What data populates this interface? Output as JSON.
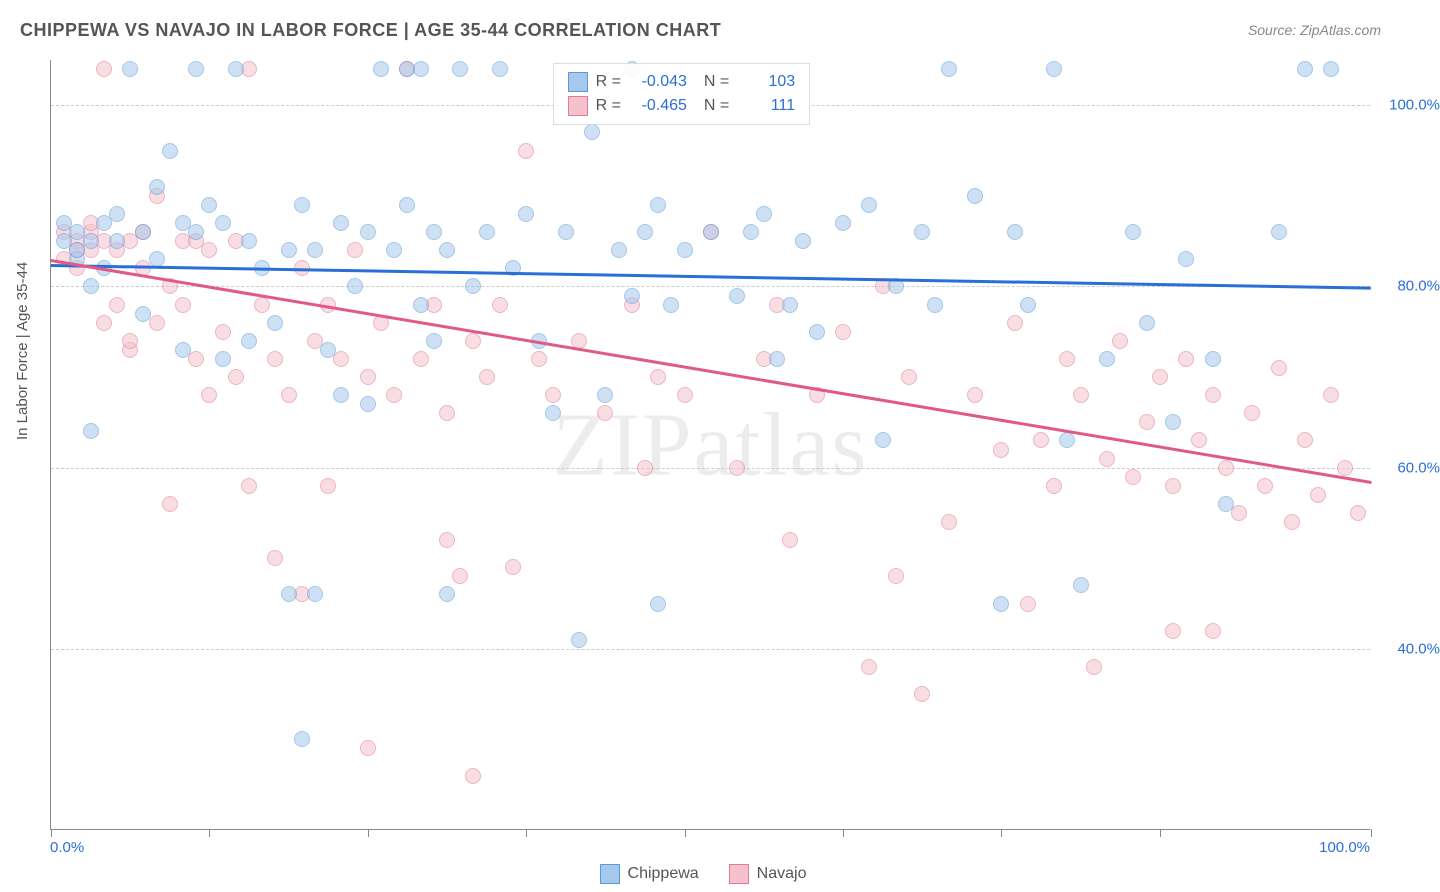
{
  "title": "CHIPPEWA VS NAVAJO IN LABOR FORCE | AGE 35-44 CORRELATION CHART",
  "source": "Source: ZipAtlas.com",
  "y_axis_title": "In Labor Force | Age 35-44",
  "watermark": "ZIPatlas",
  "chart": {
    "type": "scatter",
    "xlim": [
      0,
      100
    ],
    "ylim": [
      20,
      105
    ],
    "x_ticks": [
      0,
      12,
      24,
      36,
      48,
      60,
      72,
      84,
      100
    ],
    "x_labels_shown": {
      "0": "0.0%",
      "100": "100.0%"
    },
    "y_gridlines": [
      40,
      60,
      80,
      100
    ],
    "y_labels": {
      "40": "40.0%",
      "60": "60.0%",
      "80": "80.0%",
      "100": "100.0%"
    },
    "background_color": "#ffffff",
    "grid_color": "#cccccc",
    "axis_color": "#888888",
    "point_radius": 8,
    "point_opacity": 0.55,
    "series": {
      "chippewa": {
        "label": "Chippewa",
        "fill": "#a6c8ec",
        "stroke": "#5b9bd5",
        "line_color": "#2a6fd6",
        "R": "-0.043",
        "N": "103",
        "trend": {
          "x1": 0,
          "y1": 82.5,
          "x2": 100,
          "y2": 80.0
        },
        "points": [
          [
            1,
            85
          ],
          [
            1,
            87
          ],
          [
            2,
            83
          ],
          [
            2,
            86
          ],
          [
            2,
            84
          ],
          [
            3,
            85
          ],
          [
            3,
            80
          ],
          [
            3,
            64
          ],
          [
            4,
            87
          ],
          [
            4,
            82
          ],
          [
            5,
            88
          ],
          [
            5,
            85
          ],
          [
            6,
            104
          ],
          [
            7,
            86
          ],
          [
            7,
            77
          ],
          [
            8,
            91
          ],
          [
            8,
            83
          ],
          [
            9,
            95
          ],
          [
            10,
            87
          ],
          [
            10,
            73
          ],
          [
            11,
            86
          ],
          [
            11,
            104
          ],
          [
            12,
            89
          ],
          [
            13,
            87
          ],
          [
            13,
            72
          ],
          [
            14,
            104
          ],
          [
            15,
            85
          ],
          [
            15,
            74
          ],
          [
            16,
            82
          ],
          [
            17,
            76
          ],
          [
            18,
            84
          ],
          [
            18,
            46
          ],
          [
            19,
            89
          ],
          [
            19,
            30
          ],
          [
            20,
            84
          ],
          [
            20,
            46
          ],
          [
            21,
            73
          ],
          [
            22,
            87
          ],
          [
            22,
            68
          ],
          [
            23,
            80
          ],
          [
            24,
            86
          ],
          [
            24,
            67
          ],
          [
            25,
            104
          ],
          [
            26,
            84
          ],
          [
            27,
            104
          ],
          [
            27,
            89
          ],
          [
            28,
            78
          ],
          [
            28,
            104
          ],
          [
            29,
            86
          ],
          [
            29,
            74
          ],
          [
            30,
            84
          ],
          [
            30,
            46
          ],
          [
            31,
            104
          ],
          [
            32,
            80
          ],
          [
            33,
            86
          ],
          [
            34,
            104
          ],
          [
            35,
            82
          ],
          [
            36,
            88
          ],
          [
            37,
            74
          ],
          [
            38,
            66
          ],
          [
            39,
            86
          ],
          [
            40,
            41
          ],
          [
            41,
            97
          ],
          [
            42,
            68
          ],
          [
            43,
            84
          ],
          [
            44,
            79
          ],
          [
            44,
            104
          ],
          [
            45,
            86
          ],
          [
            46,
            89
          ],
          [
            46,
            45
          ],
          [
            47,
            78
          ],
          [
            48,
            84
          ],
          [
            50,
            86
          ],
          [
            52,
            79
          ],
          [
            53,
            86
          ],
          [
            54,
            88
          ],
          [
            55,
            72
          ],
          [
            56,
            78
          ],
          [
            57,
            85
          ],
          [
            58,
            75
          ],
          [
            60,
            87
          ],
          [
            62,
            89
          ],
          [
            63,
            63
          ],
          [
            64,
            80
          ],
          [
            66,
            86
          ],
          [
            67,
            78
          ],
          [
            68,
            104
          ],
          [
            70,
            90
          ],
          [
            72,
            45
          ],
          [
            73,
            86
          ],
          [
            74,
            78
          ],
          [
            76,
            104
          ],
          [
            77,
            63
          ],
          [
            78,
            47
          ],
          [
            80,
            72
          ],
          [
            82,
            86
          ],
          [
            83,
            76
          ],
          [
            85,
            65
          ],
          [
            86,
            83
          ],
          [
            88,
            72
          ],
          [
            89,
            56
          ],
          [
            93,
            86
          ],
          [
            95,
            104
          ],
          [
            97,
            104
          ]
        ]
      },
      "navajo": {
        "label": "Navajo",
        "fill": "#f4c2cd",
        "stroke": "#e07a9a",
        "line_color": "#e05a85",
        "R": "-0.465",
        "N": "111",
        "trend": {
          "x1": 0,
          "y1": 83.0,
          "x2": 100,
          "y2": 58.5
        },
        "points": [
          [
            1,
            86
          ],
          [
            1,
            83
          ],
          [
            2,
            85
          ],
          [
            2,
            82
          ],
          [
            2,
            84
          ],
          [
            3,
            86
          ],
          [
            3,
            84
          ],
          [
            3,
            87
          ],
          [
            4,
            85
          ],
          [
            4,
            76
          ],
          [
            4,
            104
          ],
          [
            5,
            84
          ],
          [
            5,
            78
          ],
          [
            6,
            85
          ],
          [
            6,
            73
          ],
          [
            6,
            74
          ],
          [
            7,
            86
          ],
          [
            7,
            82
          ],
          [
            8,
            76
          ],
          [
            8,
            90
          ],
          [
            9,
            80
          ],
          [
            9,
            56
          ],
          [
            10,
            85
          ],
          [
            10,
            78
          ],
          [
            11,
            72
          ],
          [
            11,
            85
          ],
          [
            12,
            68
          ],
          [
            12,
            84
          ],
          [
            13,
            75
          ],
          [
            14,
            70
          ],
          [
            14,
            85
          ],
          [
            15,
            104
          ],
          [
            15,
            58
          ],
          [
            16,
            78
          ],
          [
            17,
            72
          ],
          [
            17,
            50
          ],
          [
            18,
            68
          ],
          [
            19,
            82
          ],
          [
            19,
            46
          ],
          [
            20,
            74
          ],
          [
            21,
            58
          ],
          [
            21,
            78
          ],
          [
            22,
            72
          ],
          [
            23,
            84
          ],
          [
            24,
            70
          ],
          [
            24,
            29
          ],
          [
            25,
            76
          ],
          [
            26,
            68
          ],
          [
            27,
            104
          ],
          [
            28,
            72
          ],
          [
            29,
            78
          ],
          [
            30,
            52
          ],
          [
            30,
            66
          ],
          [
            31,
            48
          ],
          [
            32,
            74
          ],
          [
            32,
            26
          ],
          [
            33,
            70
          ],
          [
            34,
            78
          ],
          [
            35,
            49
          ],
          [
            36,
            95
          ],
          [
            37,
            72
          ],
          [
            38,
            68
          ],
          [
            40,
            74
          ],
          [
            42,
            66
          ],
          [
            44,
            78
          ],
          [
            45,
            60
          ],
          [
            46,
            70
          ],
          [
            48,
            68
          ],
          [
            50,
            86
          ],
          [
            52,
            60
          ],
          [
            54,
            72
          ],
          [
            55,
            78
          ],
          [
            56,
            52
          ],
          [
            58,
            68
          ],
          [
            60,
            75
          ],
          [
            62,
            38
          ],
          [
            63,
            80
          ],
          [
            64,
            48
          ],
          [
            65,
            70
          ],
          [
            66,
            35
          ],
          [
            68,
            54
          ],
          [
            70,
            68
          ],
          [
            72,
            62
          ],
          [
            73,
            76
          ],
          [
            74,
            45
          ],
          [
            75,
            63
          ],
          [
            76,
            58
          ],
          [
            77,
            72
          ],
          [
            78,
            68
          ],
          [
            79,
            38
          ],
          [
            80,
            61
          ],
          [
            81,
            74
          ],
          [
            82,
            59
          ],
          [
            83,
            65
          ],
          [
            84,
            70
          ],
          [
            85,
            58
          ],
          [
            85,
            42
          ],
          [
            86,
            72
          ],
          [
            87,
            63
          ],
          [
            88,
            68
          ],
          [
            88,
            42
          ],
          [
            89,
            60
          ],
          [
            90,
            55
          ],
          [
            91,
            66
          ],
          [
            92,
            58
          ],
          [
            93,
            71
          ],
          [
            94,
            54
          ],
          [
            95,
            63
          ],
          [
            96,
            57
          ],
          [
            97,
            68
          ],
          [
            98,
            60
          ],
          [
            99,
            55
          ]
        ]
      }
    }
  },
  "legend_bottom": [
    {
      "label": "Chippewa",
      "series": "chippewa"
    },
    {
      "label": "Navajo",
      "series": "navajo"
    }
  ]
}
